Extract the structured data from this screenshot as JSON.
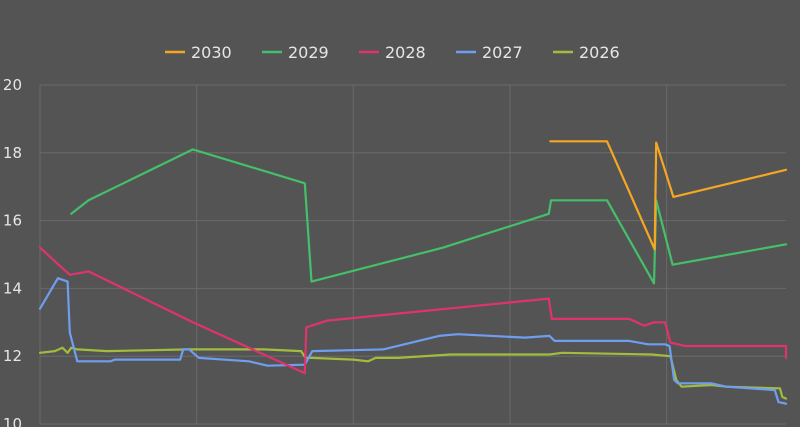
{
  "chart_data": {
    "type": "line",
    "title": "",
    "xlabel": "",
    "ylabel": "",
    "ylim": [
      10,
      20
    ],
    "yticks": [
      10,
      12,
      14,
      16,
      18,
      20
    ],
    "xlim": [
      0,
      100
    ],
    "grid": true,
    "legend_position": "top",
    "series": [
      {
        "name": "2030",
        "color": "#f5a623",
        "points": [
          [
            68.4,
            18.34
          ],
          [
            76,
            18.34
          ],
          [
            82.4,
            15.15
          ],
          [
            82.6,
            18.3
          ],
          [
            84.9,
            16.7
          ],
          [
            100,
            17.5
          ]
        ]
      },
      {
        "name": "2029",
        "color": "#45bf6a",
        "points": [
          [
            4.2,
            16.2
          ],
          [
            6.5,
            16.6
          ],
          [
            20.5,
            18.1
          ],
          [
            35.5,
            17.1
          ],
          [
            36.4,
            14.2
          ],
          [
            54,
            15.2
          ],
          [
            68.2,
            16.2
          ],
          [
            68.5,
            16.6
          ],
          [
            76,
            16.6
          ],
          [
            82.3,
            14.15
          ],
          [
            82.6,
            16.6
          ],
          [
            84.8,
            14.7
          ],
          [
            100,
            15.3
          ]
        ]
      },
      {
        "name": "2028",
        "color": "#e0336e",
        "points": [
          [
            0,
            15.2
          ],
          [
            4,
            14.4
          ],
          [
            6.5,
            14.5
          ],
          [
            20.5,
            13.0
          ],
          [
            35.5,
            11.5
          ],
          [
            35.7,
            12.85
          ],
          [
            38.5,
            13.05
          ],
          [
            68.2,
            13.7
          ],
          [
            68.6,
            13.1
          ],
          [
            75,
            13.1
          ],
          [
            79,
            13.1
          ],
          [
            81,
            12.9
          ],
          [
            82.3,
            13.0
          ],
          [
            83.8,
            13.0
          ],
          [
            84.5,
            12.4
          ],
          [
            86.5,
            12.3
          ],
          [
            88.5,
            12.3
          ],
          [
            100,
            12.3
          ],
          [
            100,
            11.95
          ]
        ]
      },
      {
        "name": "2027",
        "color": "#6f9ef0",
        "points": [
          [
            0,
            13.4
          ],
          [
            2.4,
            14.3
          ],
          [
            3.7,
            14.2
          ],
          [
            4,
            12.7
          ],
          [
            5,
            11.85
          ],
          [
            9.5,
            11.85
          ],
          [
            10,
            11.9
          ],
          [
            18.8,
            11.9
          ],
          [
            19.2,
            12.2
          ],
          [
            20,
            12.2
          ],
          [
            21.3,
            11.95
          ],
          [
            28,
            11.85
          ],
          [
            30.5,
            11.72
          ],
          [
            35.5,
            11.75
          ],
          [
            36.5,
            12.15
          ],
          [
            46,
            12.2
          ],
          [
            53.5,
            12.6
          ],
          [
            56,
            12.65
          ],
          [
            65,
            12.55
          ],
          [
            68.3,
            12.6
          ],
          [
            69,
            12.45
          ],
          [
            79,
            12.45
          ],
          [
            81.5,
            12.35
          ],
          [
            83.8,
            12.35
          ],
          [
            84.4,
            12.3
          ],
          [
            85,
            11.3
          ],
          [
            85.5,
            11.2
          ],
          [
            90,
            11.2
          ],
          [
            92,
            11.1
          ],
          [
            98.5,
            11.0
          ],
          [
            99,
            10.65
          ],
          [
            100,
            10.6
          ]
        ]
      },
      {
        "name": "2026",
        "color": "#a2bd3d",
        "points": [
          [
            0,
            12.1
          ],
          [
            2,
            12.15
          ],
          [
            3,
            12.25
          ],
          [
            3.7,
            12.1
          ],
          [
            4.2,
            12.25
          ],
          [
            5,
            12.2
          ],
          [
            9,
            12.15
          ],
          [
            20,
            12.2
          ],
          [
            25,
            12.2
          ],
          [
            30,
            12.2
          ],
          [
            35,
            12.15
          ],
          [
            35.6,
            11.95
          ],
          [
            36.5,
            11.95
          ],
          [
            42,
            11.9
          ],
          [
            44,
            11.85
          ],
          [
            45,
            11.95
          ],
          [
            48,
            11.95
          ],
          [
            55,
            12.05
          ],
          [
            68.3,
            12.05
          ],
          [
            70,
            12.1
          ],
          [
            82,
            12.05
          ],
          [
            84.5,
            12.0
          ],
          [
            85.3,
            11.3
          ],
          [
            86,
            11.1
          ],
          [
            90,
            11.15
          ],
          [
            92,
            11.1
          ],
          [
            99.2,
            11.05
          ],
          [
            99.5,
            10.8
          ],
          [
            100,
            10.75
          ]
        ]
      }
    ]
  }
}
